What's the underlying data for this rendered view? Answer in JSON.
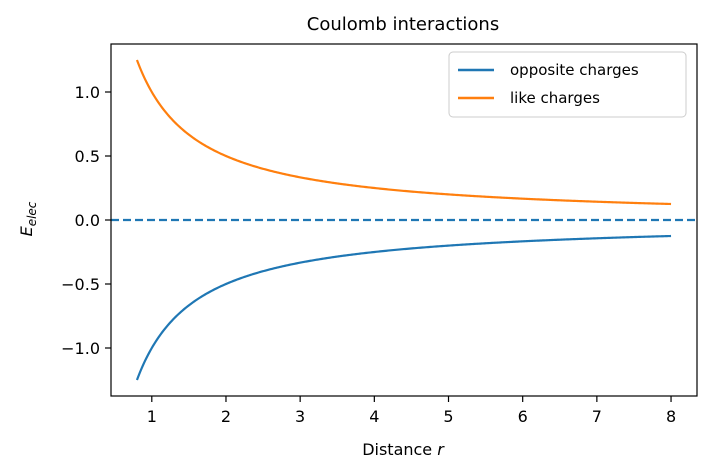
{
  "chart_data": {
    "type": "line",
    "title": "Coulomb interactions",
    "xlabel_main": "Distance ",
    "xlabel_var": "r",
    "ylabel_base": "E",
    "ylabel_sub": "elec",
    "xlim": [
      0.45,
      8.35
    ],
    "ylim": [
      -1.375,
      1.375
    ],
    "xticks": [
      1,
      2,
      3,
      4,
      5,
      6,
      7,
      8
    ],
    "xtick_labels": [
      "1",
      "2",
      "3",
      "4",
      "5",
      "6",
      "7",
      "8"
    ],
    "yticks": [
      -1.0,
      -0.5,
      0.0,
      0.5,
      1.0
    ],
    "ytick_labels": [
      "−1.0",
      "−0.5",
      "0.0",
      "0.5",
      "1.0"
    ],
    "x_range": [
      0.8,
      8.0
    ],
    "function": "E = s / r",
    "series": [
      {
        "name": "opposite charges",
        "sign": -1,
        "color": "#1f77b4"
      },
      {
        "name": "like charges",
        "sign": 1,
        "color": "#ff7f0e"
      }
    ],
    "reference_line": {
      "y": 0.0,
      "style": "dashed",
      "color": "#1f77b4"
    },
    "legend": {
      "position": "top-right"
    },
    "grid": false
  }
}
